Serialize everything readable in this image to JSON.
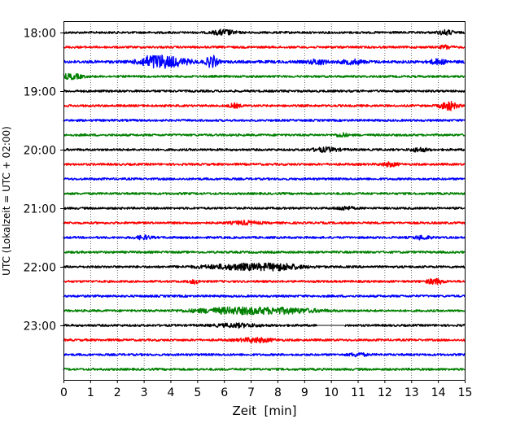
{
  "chart_data": {
    "type": "line",
    "title": "",
    "xlabel": "Zeit  [min]",
    "ylabel": "UTC (Lokalzeit = UTC + 02:00)",
    "xlim": [
      0,
      15
    ],
    "xticks": [
      "0",
      "1",
      "2",
      "3",
      "4",
      "5",
      "6",
      "7",
      "8",
      "9",
      "10",
      "11",
      "12",
      "13",
      "14",
      "15"
    ],
    "yticks": [
      "18:00",
      "19:00",
      "20:00",
      "21:00",
      "22:00",
      "23:00"
    ],
    "grid_x": true,
    "trace_colors": [
      "#000000",
      "#ff0000",
      "#0000ff",
      "#008000"
    ],
    "traces": [
      {
        "start": "18:00",
        "amplitude": 1.0,
        "events": [
          {
            "t": 6.0,
            "amp": 2.2,
            "width": 0.4
          },
          {
            "t": 14.3,
            "amp": 1.8,
            "width": 0.3
          }
        ]
      },
      {
        "start": "18:15",
        "amplitude": 1.0,
        "events": [
          {
            "t": 14.3,
            "amp": 1.6,
            "width": 0.2
          }
        ]
      },
      {
        "start": "18:30",
        "amplitude": 1.3,
        "events": [
          {
            "t": 3.3,
            "amp": 4.0,
            "width": 0.5
          },
          {
            "t": 4.0,
            "amp": 3.5,
            "width": 0.7
          },
          {
            "t": 5.55,
            "amp": 5.0,
            "width": 0.2
          },
          {
            "t": 9.5,
            "amp": 2.0,
            "width": 0.3
          },
          {
            "t": 10.8,
            "amp": 1.6,
            "width": 0.4
          },
          {
            "t": 14.0,
            "amp": 1.8,
            "width": 0.3
          }
        ]
      },
      {
        "start": "18:45",
        "amplitude": 1.0,
        "events": [
          {
            "t": 0.3,
            "amp": 2.0,
            "width": 0.4
          }
        ]
      },
      {
        "start": "19:00",
        "amplitude": 1.0,
        "events": []
      },
      {
        "start": "19:15",
        "amplitude": 1.0,
        "events": [
          {
            "t": 6.4,
            "amp": 1.6,
            "width": 0.2
          },
          {
            "t": 14.4,
            "amp": 3.6,
            "width": 0.3
          }
        ]
      },
      {
        "start": "19:30",
        "amplitude": 1.0,
        "events": []
      },
      {
        "start": "19:45",
        "amplitude": 1.0,
        "events": [
          {
            "t": 10.4,
            "amp": 1.6,
            "width": 0.2
          }
        ]
      },
      {
        "start": "20:00",
        "amplitude": 1.0,
        "events": [
          {
            "t": 9.8,
            "amp": 1.6,
            "width": 0.5
          },
          {
            "t": 13.3,
            "amp": 1.6,
            "width": 0.3
          }
        ]
      },
      {
        "start": "20:15",
        "amplitude": 1.0,
        "events": [
          {
            "t": 12.2,
            "amp": 1.6,
            "width": 0.3
          }
        ]
      },
      {
        "start": "20:30",
        "amplitude": 1.0,
        "events": []
      },
      {
        "start": "20:45",
        "amplitude": 1.0,
        "events": []
      },
      {
        "start": "21:00",
        "amplitude": 1.0,
        "events": [
          {
            "t": 10.5,
            "amp": 1.4,
            "width": 0.3
          }
        ]
      },
      {
        "start": "21:15",
        "amplitude": 1.0,
        "events": [
          {
            "t": 6.8,
            "amp": 1.4,
            "width": 0.5
          }
        ]
      },
      {
        "start": "21:30",
        "amplitude": 1.0,
        "events": [
          {
            "t": 3.0,
            "amp": 1.4,
            "width": 0.3
          },
          {
            "t": 13.4,
            "amp": 1.5,
            "width": 0.3
          }
        ]
      },
      {
        "start": "21:45",
        "amplitude": 1.0,
        "events": []
      },
      {
        "start": "22:00",
        "amplitude": 1.0,
        "events": [
          {
            "t": 6.9,
            "amp": 2.4,
            "width": 1.6
          },
          {
            "t": 8.2,
            "amp": 1.5,
            "width": 0.6
          }
        ]
      },
      {
        "start": "22:15",
        "amplitude": 1.0,
        "events": [
          {
            "t": 4.9,
            "amp": 1.5,
            "width": 0.2
          },
          {
            "t": 13.9,
            "amp": 2.2,
            "width": 0.3
          }
        ]
      },
      {
        "start": "22:30",
        "amplitude": 1.0,
        "events": []
      },
      {
        "start": "22:45",
        "amplitude": 1.0,
        "events": [
          {
            "t": 6.5,
            "amp": 2.5,
            "width": 1.6
          },
          {
            "t": 8.5,
            "amp": 1.5,
            "width": 1.2
          }
        ]
      },
      {
        "start": "23:00",
        "amplitude": 1.0,
        "events": [
          {
            "t": 6.5,
            "amp": 1.4,
            "width": 0.8
          }
        ],
        "gap": [
          9.5,
          10.5
        ]
      },
      {
        "start": "23:15",
        "amplitude": 1.0,
        "events": [
          {
            "t": 7.2,
            "amp": 1.8,
            "width": 0.6
          }
        ]
      },
      {
        "start": "23:30",
        "amplitude": 1.0,
        "events": [
          {
            "t": 11.0,
            "amp": 1.4,
            "width": 0.3
          }
        ]
      },
      {
        "start": "23:45",
        "amplitude": 1.0,
        "events": []
      }
    ]
  }
}
